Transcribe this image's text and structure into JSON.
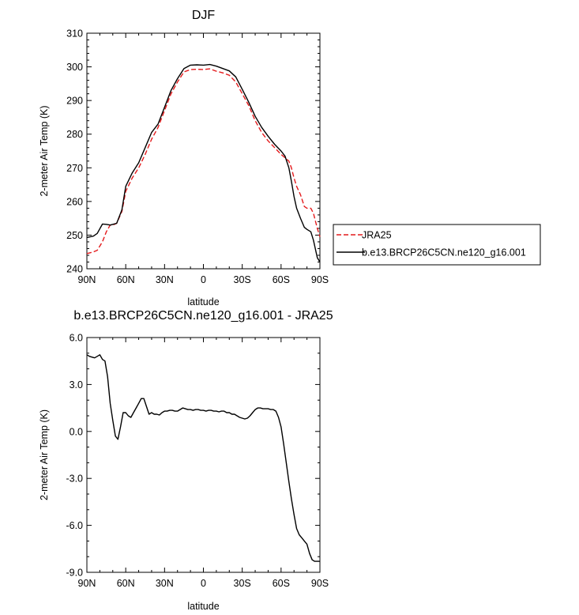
{
  "chart_data": [
    {
      "type": "line",
      "title": "DJF",
      "xlabel": "latitude",
      "ylabel": "2-meter Air Temp (K)",
      "xlim": [
        -90,
        90
      ],
      "ylim": [
        240,
        310
      ],
      "xticks": [
        {
          "value": -90,
          "label": "90N"
        },
        {
          "value": -60,
          "label": "60N"
        },
        {
          "value": -30,
          "label": "30N"
        },
        {
          "value": 0,
          "label": "0"
        },
        {
          "value": 30,
          "label": "30S"
        },
        {
          "value": 60,
          "label": "60S"
        },
        {
          "value": 90,
          "label": "90S"
        }
      ],
      "yticks": [
        {
          "value": 240,
          "label": "240"
        },
        {
          "value": 250,
          "label": "250"
        },
        {
          "value": 260,
          "label": "260"
        },
        {
          "value": 270,
          "label": "270"
        },
        {
          "value": 280,
          "label": "280"
        },
        {
          "value": 290,
          "label": "290"
        },
        {
          "value": 300,
          "label": "300"
        },
        {
          "value": 310,
          "label": "310"
        }
      ],
      "legend": {
        "placement": "right"
      },
      "series": [
        {
          "name": "JRA25",
          "color": "#e41a1c",
          "dash": "dashed",
          "x": [
            -90,
            -85,
            -82,
            -78,
            -75,
            -72,
            -70,
            -67,
            -63,
            -60,
            -55,
            -50,
            -45,
            -40,
            -35,
            -30,
            -25,
            -20,
            -15,
            -10,
            -5,
            0,
            5,
            10,
            15,
            20,
            25,
            30,
            35,
            40,
            45,
            50,
            55,
            60,
            63,
            66,
            68,
            70,
            72,
            75,
            78,
            80,
            83,
            85,
            88,
            90
          ],
          "values": [
            244.5,
            245,
            245.5,
            248,
            251,
            253,
            253,
            253.5,
            257,
            263,
            267,
            270,
            274,
            278.5,
            282,
            287,
            292,
            295.5,
            298.5,
            299.2,
            299.3,
            299.2,
            299.4,
            298.7,
            298.2,
            297.5,
            295.5,
            292,
            288.5,
            284,
            280.5,
            278,
            276,
            274,
            273,
            272,
            270,
            267,
            264.5,
            262,
            258.5,
            258,
            258,
            256.5,
            252,
            249.5
          ]
        },
        {
          "name": "b.e13.BRCP26C5CN.ne120_g16.001",
          "color": "#000000",
          "dash": "solid",
          "x": [
            -90,
            -85,
            -82,
            -78,
            -75,
            -72,
            -70,
            -67,
            -63,
            -60,
            -55,
            -50,
            -45,
            -40,
            -35,
            -30,
            -25,
            -20,
            -15,
            -10,
            -5,
            0,
            5,
            10,
            15,
            20,
            25,
            30,
            35,
            40,
            45,
            50,
            55,
            60,
            63,
            66,
            68,
            70,
            72,
            75,
            78,
            80,
            83,
            85,
            88,
            90
          ],
          "values": [
            249.3,
            249.7,
            250.5,
            253.3,
            253.2,
            253,
            253.2,
            253.5,
            257.5,
            264.5,
            268.5,
            271.5,
            276,
            280.5,
            283,
            288,
            293,
            296.5,
            299.5,
            300.5,
            300.6,
            300.5,
            300.7,
            300.2,
            299.5,
            298.8,
            297,
            293.3,
            289.5,
            285.3,
            282,
            279.4,
            277,
            275,
            273.5,
            270,
            266,
            261.5,
            258,
            255,
            252.3,
            251.7,
            251,
            248.5,
            243.3,
            242
          ]
        }
      ]
    },
    {
      "type": "line",
      "title": "b.e13.BRCP26C5CN.ne120_g16.001 - JRA25",
      "xlabel": "latitude",
      "ylabel": "2-meter Air Temp (K)",
      "xlim": [
        -90,
        90
      ],
      "ylim": [
        -9,
        6
      ],
      "xticks": [
        {
          "value": -90,
          "label": "90N"
        },
        {
          "value": -60,
          "label": "60N"
        },
        {
          "value": -30,
          "label": "30N"
        },
        {
          "value": 0,
          "label": "0"
        },
        {
          "value": 30,
          "label": "30S"
        },
        {
          "value": 60,
          "label": "60S"
        },
        {
          "value": 90,
          "label": "90S"
        }
      ],
      "yticks": [
        {
          "value": -9,
          "label": "-9.0"
        },
        {
          "value": -6,
          "label": "-6.0"
        },
        {
          "value": -3,
          "label": "-3.0"
        },
        {
          "value": 0,
          "label": "0.0"
        },
        {
          "value": 3,
          "label": "3.0"
        },
        {
          "value": 6,
          "label": "6.0"
        }
      ],
      "series": [
        {
          "color": "#000000",
          "dash": "solid",
          "x": [
            -90,
            -88,
            -86,
            -84,
            -82,
            -80,
            -78,
            -76,
            -74,
            -72,
            -70,
            -68,
            -66,
            -64,
            -62,
            -60,
            -58,
            -56,
            -54,
            -52,
            -50,
            -48,
            -46,
            -44,
            -42,
            -40,
            -38,
            -36,
            -34,
            -32,
            -30,
            -28,
            -26,
            -24,
            -22,
            -20,
            -18,
            -16,
            -14,
            -12,
            -10,
            -8,
            -6,
            -4,
            -2,
            0,
            2,
            4,
            6,
            8,
            10,
            12,
            14,
            16,
            18,
            20,
            22,
            24,
            26,
            28,
            30,
            32,
            34,
            36,
            38,
            40,
            42,
            44,
            46,
            48,
            50,
            52,
            54,
            56,
            58,
            60,
            62,
            64,
            66,
            68,
            70,
            72,
            74,
            76,
            78,
            80,
            82,
            84,
            86,
            88,
            90
          ],
          "values": [
            4.9,
            4.8,
            4.75,
            4.7,
            4.8,
            4.9,
            4.6,
            4.5,
            3.5,
            1.8,
            0.7,
            -0.3,
            -0.5,
            0.3,
            1.2,
            1.2,
            1.0,
            0.9,
            1.2,
            1.5,
            1.8,
            2.1,
            2.1,
            1.6,
            1.1,
            1.2,
            1.1,
            1.1,
            1.05,
            1.2,
            1.3,
            1.3,
            1.35,
            1.35,
            1.3,
            1.3,
            1.4,
            1.5,
            1.45,
            1.4,
            1.4,
            1.35,
            1.4,
            1.4,
            1.35,
            1.35,
            1.3,
            1.35,
            1.35,
            1.3,
            1.3,
            1.25,
            1.3,
            1.3,
            1.2,
            1.2,
            1.1,
            1.1,
            1.0,
            0.9,
            0.85,
            0.8,
            0.85,
            1.0,
            1.2,
            1.4,
            1.5,
            1.5,
            1.45,
            1.45,
            1.45,
            1.4,
            1.4,
            1.3,
            0.9,
            0.3,
            -0.8,
            -2.0,
            -3.2,
            -4.3,
            -5.3,
            -6.2,
            -6.6,
            -6.8,
            -7.0,
            -7.2,
            -7.8,
            -8.2,
            -8.3,
            -8.3,
            -8.3
          ]
        }
      ]
    }
  ]
}
